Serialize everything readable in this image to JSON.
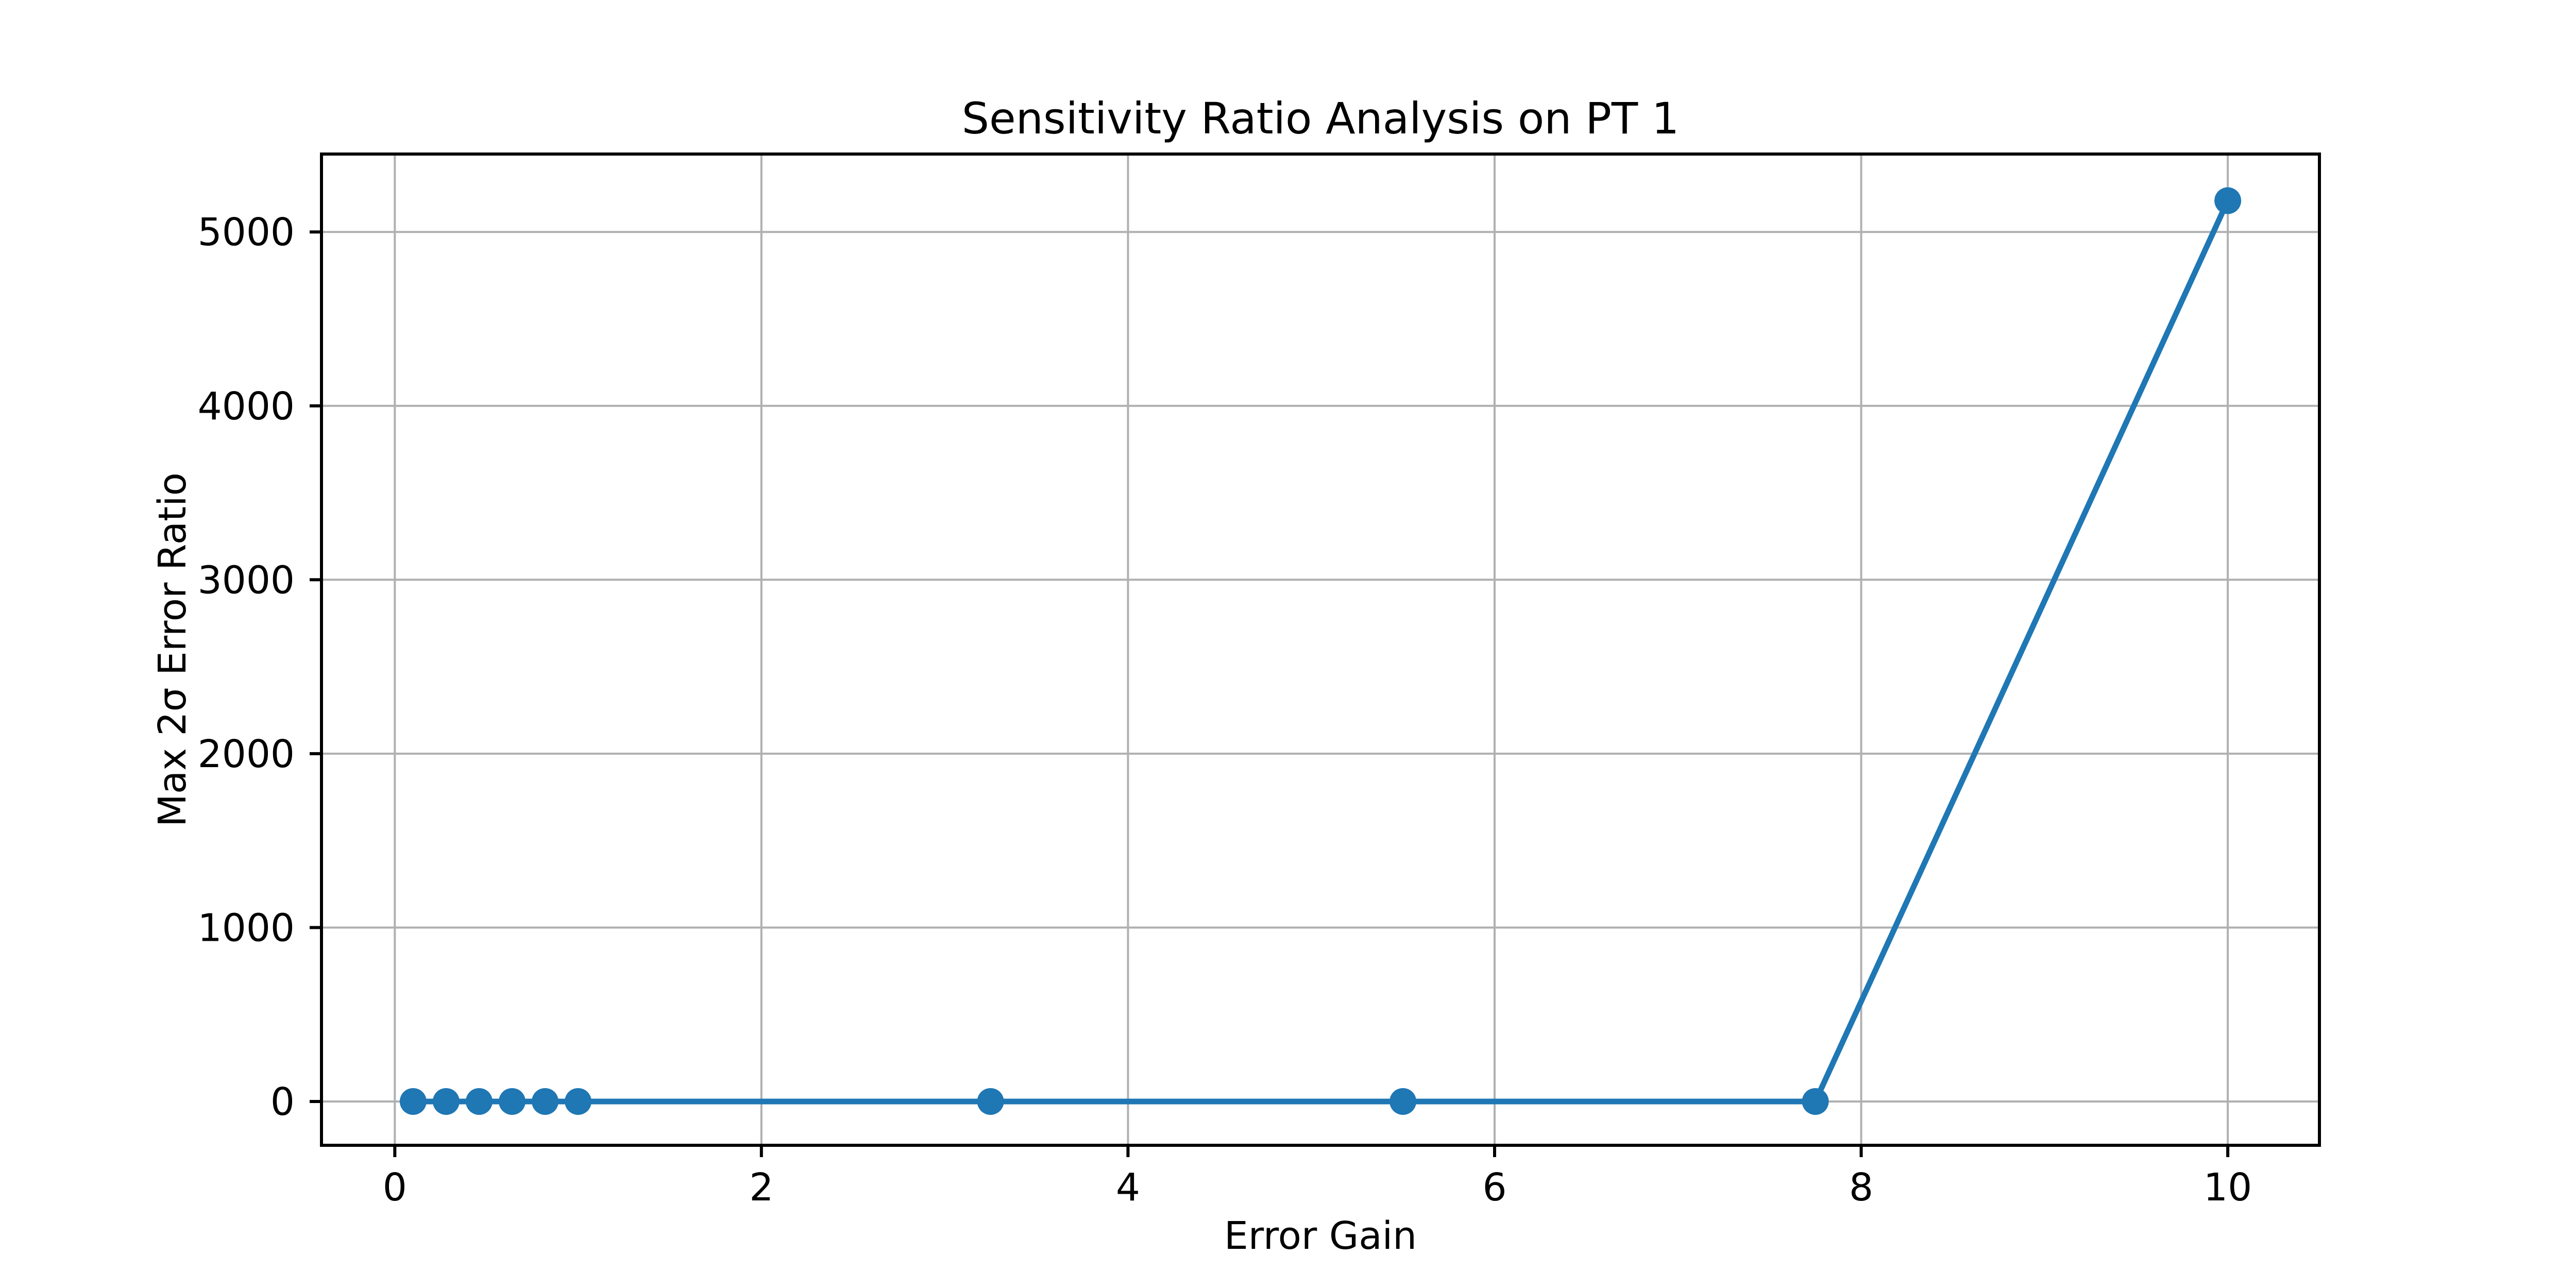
{
  "figure": {
    "background_color": "#ffffff",
    "text_color": "#000000"
  },
  "chart_data": {
    "type": "line",
    "title": "Sensitivity Ratio Analysis on PT 1",
    "xlabel": "Error Gain",
    "ylabel": "Max 2σ Error Ratio",
    "x": [
      0.1,
      0.28,
      0.46,
      0.64,
      0.82,
      1.0,
      3.25,
      5.5,
      7.75,
      10.0
    ],
    "y": [
      0,
      0,
      0,
      0,
      0,
      0,
      0,
      0,
      0,
      5180
    ],
    "x_ticks": [
      0,
      2,
      4,
      6,
      8,
      10
    ],
    "y_ticks": [
      0,
      1000,
      2000,
      3000,
      4000,
      5000
    ],
    "xlim": [
      -0.4,
      10.5
    ],
    "ylim": [
      -252,
      5448
    ],
    "grid": true,
    "legend": "none",
    "line_color": "#1f77b4",
    "marker": "circle",
    "marker_color": "#1f77b4",
    "grid_color": "#b0b0b0",
    "axis_color": "#000000"
  }
}
